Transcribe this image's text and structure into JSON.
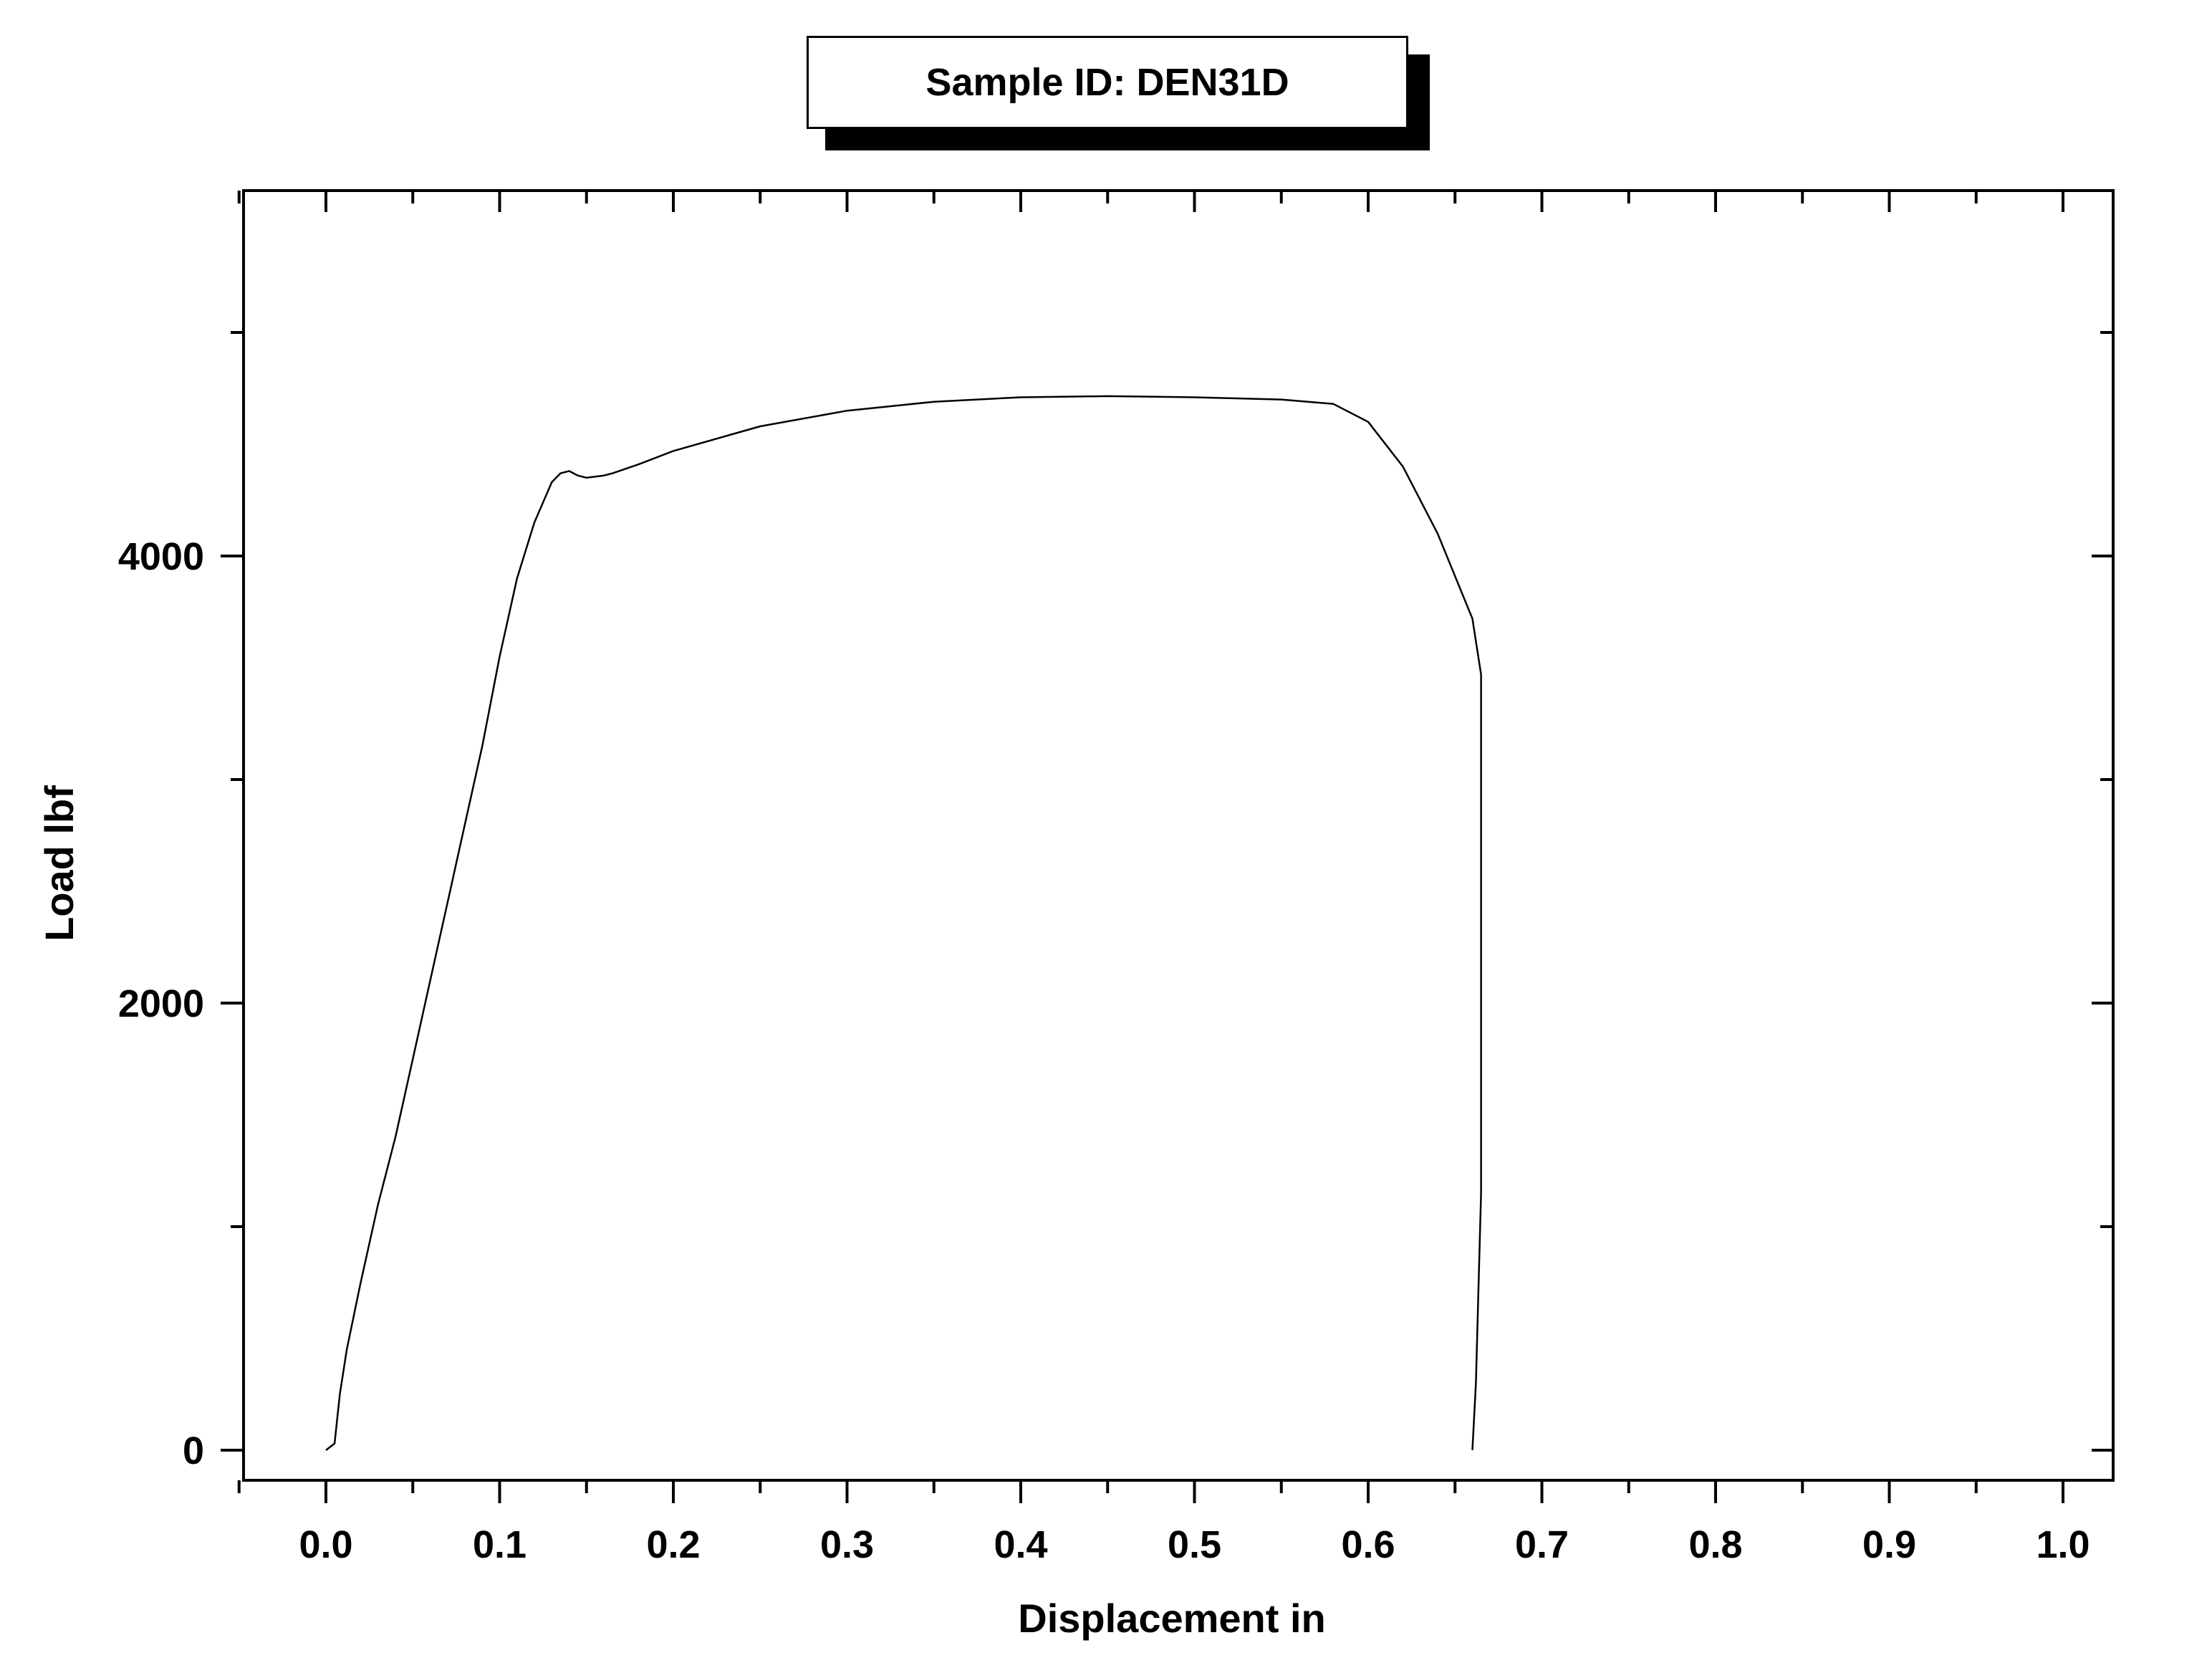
{
  "chart_data": {
    "type": "line",
    "title": "Sample ID: DEN31D",
    "xlabel": "Displacement in",
    "ylabel": "Load lbf",
    "xlim": [
      -0.05,
      1.025
    ],
    "ylim": [
      -100,
      5600
    ],
    "x_ticks": [
      0.0,
      0.1,
      0.2,
      0.3,
      0.4,
      0.5,
      0.6,
      0.7,
      0.8,
      0.9,
      1.0
    ],
    "x_tick_labels": [
      "0.0",
      "0.1",
      "0.2",
      "0.3",
      "0.4",
      "0.5",
      "0.6",
      "0.7",
      "0.8",
      "0.9",
      "1.0"
    ],
    "x_minor_ticks": [
      -0.05,
      0.05,
      0.15,
      0.25,
      0.35,
      0.45,
      0.55,
      0.65,
      0.75,
      0.85,
      0.95
    ],
    "y_ticks": [
      0,
      2000,
      4000
    ],
    "y_tick_labels": [
      "0",
      "2000",
      "4000"
    ],
    "y_minor_ticks": [
      1000,
      3000,
      5000
    ],
    "grid": false,
    "line_color": "#000000",
    "series": [
      {
        "x": [
          0.0,
          0.005,
          0.008,
          0.012,
          0.02,
          0.03,
          0.04,
          0.05,
          0.06,
          0.07,
          0.08,
          0.09,
          0.1,
          0.11,
          0.12,
          0.13,
          0.135,
          0.14,
          0.145,
          0.15,
          0.16,
          0.165,
          0.18,
          0.2,
          0.25,
          0.3,
          0.35,
          0.4,
          0.45,
          0.5,
          0.55,
          0.58,
          0.6,
          0.62,
          0.64,
          0.66,
          0.665,
          0.665,
          0.662,
          0.66
        ],
        "y": [
          0,
          30,
          250,
          450,
          750,
          1100,
          1400,
          1750,
          2100,
          2450,
          2800,
          3150,
          3550,
          3900,
          4150,
          4330,
          4370,
          4380,
          4360,
          4350,
          4360,
          4370,
          4410,
          4470,
          4580,
          4650,
          4690,
          4710,
          4715,
          4710,
          4700,
          4680,
          4600,
          4400,
          4100,
          3720,
          3470,
          1150,
          300,
          0
        ]
      }
    ]
  }
}
